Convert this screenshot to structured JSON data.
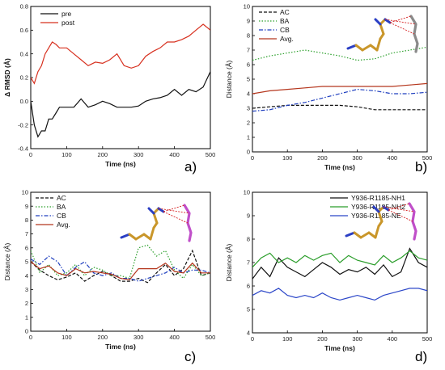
{
  "chart_data": [
    {
      "panel": "a)",
      "type": "line",
      "xlabel": "Time (ns)",
      "ylabel": "Δ RMSD (Å)",
      "xlim": [
        0,
        500
      ],
      "ylim": [
        -0.4,
        0.8
      ],
      "xticks": [
        0,
        100,
        200,
        300,
        400,
        500
      ],
      "yticks": [
        -0.4,
        -0.2,
        0.0,
        0.2,
        0.4,
        0.6,
        0.8
      ],
      "legend": "top-left",
      "colors": {
        "pre": "#111111",
        "post": "#d7301f"
      },
      "series": [
        {
          "name": "pre",
          "x": [
            0,
            10,
            20,
            30,
            40,
            50,
            60,
            70,
            80,
            100,
            120,
            140,
            160,
            180,
            200,
            220,
            240,
            260,
            280,
            300,
            320,
            340,
            360,
            380,
            400,
            420,
            440,
            460,
            480,
            500
          ],
          "values": [
            0.0,
            -0.2,
            -0.3,
            -0.25,
            -0.25,
            -0.15,
            -0.15,
            -0.1,
            -0.05,
            -0.05,
            -0.05,
            0.02,
            -0.05,
            -0.03,
            0.0,
            -0.02,
            -0.05,
            -0.05,
            -0.05,
            -0.04,
            0.0,
            0.02,
            0.03,
            0.05,
            0.1,
            0.05,
            0.1,
            0.08,
            0.12,
            0.25
          ]
        },
        {
          "name": "post",
          "x": [
            0,
            10,
            20,
            30,
            40,
            50,
            60,
            70,
            80,
            100,
            120,
            140,
            160,
            180,
            200,
            220,
            240,
            260,
            280,
            300,
            320,
            340,
            360,
            380,
            400,
            420,
            440,
            460,
            480,
            500
          ],
          "values": [
            0.2,
            0.15,
            0.25,
            0.3,
            0.4,
            0.45,
            0.5,
            0.48,
            0.45,
            0.45,
            0.4,
            0.35,
            0.3,
            0.33,
            0.32,
            0.35,
            0.4,
            0.3,
            0.28,
            0.3,
            0.38,
            0.42,
            0.45,
            0.5,
            0.5,
            0.52,
            0.55,
            0.6,
            0.65,
            0.6
          ]
        }
      ]
    },
    {
      "panel": "b)",
      "type": "line",
      "xlabel": "Time (ns)",
      "ylabel": "Distance (Å)",
      "xlim": [
        0,
        500
      ],
      "ylim": [
        0,
        10
      ],
      "xticks": [
        0,
        100,
        200,
        300,
        400,
        500
      ],
      "yticks": [
        0,
        1,
        2,
        3,
        4,
        5,
        6,
        7,
        8,
        9,
        10
      ],
      "legend": "top-left",
      "colors": {
        "AC": "#111111",
        "BA": "#2ca02c",
        "CB": "#1f3fbf",
        "Avg.": "#b5361d"
      },
      "series": [
        {
          "name": "AC",
          "x": [
            0,
            50,
            100,
            150,
            200,
            250,
            300,
            350,
            400,
            450,
            500
          ],
          "values": [
            3.0,
            3.1,
            3.2,
            3.2,
            3.2,
            3.2,
            3.1,
            2.9,
            2.9,
            2.9,
            2.9
          ]
        },
        {
          "name": "BA",
          "x": [
            0,
            50,
            100,
            150,
            200,
            250,
            300,
            350,
            400,
            450,
            500
          ],
          "values": [
            6.3,
            6.6,
            6.8,
            7.0,
            6.8,
            6.6,
            6.3,
            6.4,
            6.8,
            7.0,
            7.2
          ]
        },
        {
          "name": "CB",
          "x": [
            0,
            50,
            100,
            150,
            200,
            250,
            300,
            350,
            400,
            450,
            500
          ],
          "values": [
            2.8,
            2.9,
            3.2,
            3.4,
            3.7,
            4.0,
            4.3,
            4.2,
            4.0,
            4.0,
            4.1
          ]
        },
        {
          "name": "Avg.",
          "x": [
            0,
            50,
            100,
            150,
            200,
            250,
            300,
            350,
            400,
            450,
            500
          ],
          "values": [
            4.0,
            4.2,
            4.3,
            4.4,
            4.5,
            4.5,
            4.5,
            4.5,
            4.5,
            4.6,
            4.7
          ]
        }
      ]
    },
    {
      "panel": "c)",
      "type": "line",
      "xlabel": "Time (ns)",
      "ylabel": "Distance (Å)",
      "xlim": [
        0,
        500
      ],
      "ylim": [
        0,
        10
      ],
      "xticks": [
        0,
        100,
        200,
        300,
        400,
        500
      ],
      "yticks": [
        0,
        1,
        2,
        3,
        4,
        5,
        6,
        7,
        8,
        9,
        10
      ],
      "legend": "top-left",
      "colors": {
        "AC": "#111111",
        "BA": "#2ca02c",
        "CB": "#1f3fbf",
        "Avg.": "#b5361d"
      },
      "series": [
        {
          "name": "AC",
          "x": [
            0,
            25,
            50,
            75,
            100,
            125,
            150,
            175,
            200,
            225,
            250,
            275,
            300,
            325,
            350,
            375,
            400,
            425,
            450,
            475,
            500
          ],
          "values": [
            5.0,
            4.4,
            4.0,
            3.7,
            3.9,
            4.2,
            3.6,
            4.0,
            4.3,
            4.0,
            3.6,
            3.6,
            3.8,
            3.5,
            4.2,
            4.8,
            4.0,
            4.5,
            5.8,
            4.0,
            4.2
          ]
        },
        {
          "name": "BA",
          "x": [
            0,
            25,
            50,
            75,
            100,
            125,
            150,
            175,
            200,
            225,
            250,
            275,
            300,
            325,
            350,
            375,
            400,
            425,
            450,
            475,
            500
          ],
          "values": [
            5.8,
            4.2,
            4.8,
            4.0,
            4.2,
            4.8,
            4.0,
            4.6,
            4.4,
            4.0,
            4.0,
            3.8,
            6.0,
            6.2,
            5.4,
            5.8,
            4.4,
            3.8,
            4.8,
            4.0,
            4.2
          ]
        },
        {
          "name": "CB",
          "x": [
            0,
            25,
            50,
            75,
            100,
            125,
            150,
            175,
            200,
            225,
            250,
            275,
            300,
            325,
            350,
            375,
            400,
            425,
            450,
            475,
            500
          ],
          "values": [
            5.2,
            4.8,
            5.4,
            5.0,
            4.0,
            4.6,
            5.0,
            4.2,
            4.0,
            4.2,
            3.8,
            3.8,
            3.6,
            3.8,
            4.0,
            4.2,
            4.6,
            4.2,
            4.4,
            4.4,
            4.2
          ]
        },
        {
          "name": "Avg.",
          "x": [
            0,
            25,
            50,
            75,
            100,
            125,
            150,
            175,
            200,
            225,
            250,
            275,
            300,
            325,
            350,
            375,
            400,
            425,
            450,
            475,
            500
          ],
          "values": [
            5.0,
            4.5,
            4.7,
            4.2,
            4.0,
            4.5,
            4.2,
            4.3,
            4.2,
            4.1,
            3.8,
            3.7,
            4.5,
            4.5,
            4.5,
            4.9,
            4.3,
            4.2,
            4.9,
            4.2,
            4.2
          ]
        }
      ]
    },
    {
      "panel": "d)",
      "type": "line",
      "xlabel": "Time (ns)",
      "ylabel": "Distance (Å)",
      "xlim": [
        0,
        500
      ],
      "ylim": [
        4,
        10
      ],
      "xticks": [
        0,
        100,
        200,
        300,
        400,
        500
      ],
      "yticks": [
        4,
        5,
        6,
        7,
        8,
        9,
        10
      ],
      "legend": "top-right",
      "colors": {
        "Y936-R1185-NH1": "#111111",
        "Y936-R1185-NH2": "#2a9d2a",
        "Y936-R1185-NE": "#2b46c8"
      },
      "series": [
        {
          "name": "Y936-R1185-NH1",
          "x": [
            0,
            25,
            50,
            75,
            100,
            125,
            150,
            175,
            200,
            225,
            250,
            275,
            300,
            325,
            350,
            375,
            400,
            425,
            450,
            475,
            500
          ],
          "values": [
            6.3,
            6.8,
            6.4,
            7.2,
            6.8,
            6.6,
            6.4,
            6.7,
            7.0,
            6.8,
            6.5,
            6.7,
            6.6,
            6.8,
            6.5,
            6.9,
            6.4,
            6.6,
            7.6,
            7.0,
            6.8
          ]
        },
        {
          "name": "Y936-R1185-NH2",
          "x": [
            0,
            25,
            50,
            75,
            100,
            125,
            150,
            175,
            200,
            225,
            250,
            275,
            300,
            325,
            350,
            375,
            400,
            425,
            450,
            475,
            500
          ],
          "values": [
            6.8,
            7.2,
            7.4,
            7.0,
            7.2,
            7.0,
            7.3,
            7.1,
            7.3,
            7.4,
            7.0,
            7.3,
            7.1,
            7.0,
            6.9,
            7.3,
            7.0,
            7.2,
            7.5,
            7.2,
            7.1
          ]
        },
        {
          "name": "Y936-R1185-NE",
          "x": [
            0,
            25,
            50,
            75,
            100,
            125,
            150,
            175,
            200,
            225,
            250,
            275,
            300,
            325,
            350,
            375,
            400,
            425,
            450,
            475,
            500
          ],
          "values": [
            5.6,
            5.8,
            5.7,
            5.9,
            5.6,
            5.5,
            5.6,
            5.5,
            5.7,
            5.5,
            5.4,
            5.5,
            5.6,
            5.5,
            5.4,
            5.6,
            5.7,
            5.8,
            5.9,
            5.9,
            5.8
          ]
        }
      ]
    }
  ]
}
